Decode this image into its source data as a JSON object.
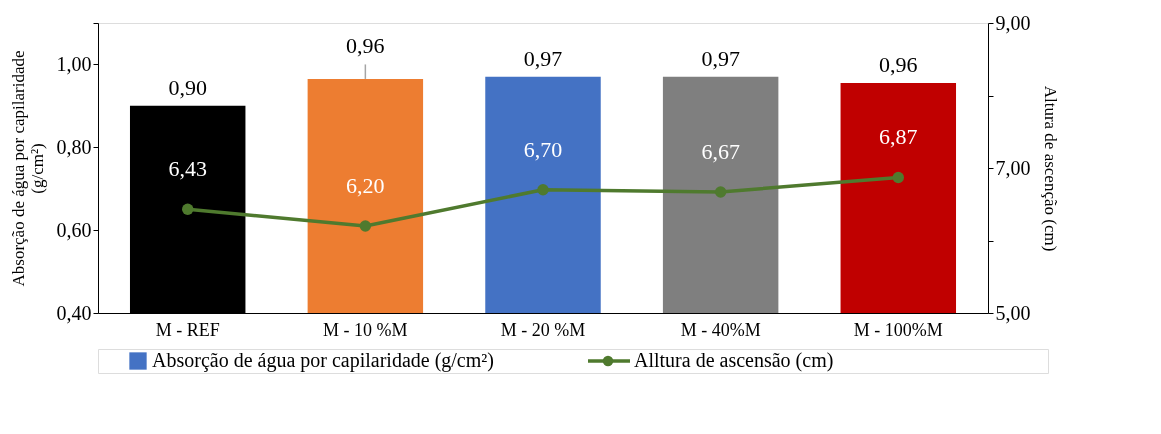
{
  "chart_data": {
    "type": "bar",
    "categories": [
      "M - REF",
      "M - 10 %M",
      "M - 20 %M",
      "M - 40%M",
      "M - 100%M"
    ],
    "ylabel": "Absorção de água por capilaridade (g/cm²)",
    "y2label": "Altura de ascenção (cm)",
    "ylim": [
      0.4,
      1.1
    ],
    "yticks": [
      {
        "value": 0.4,
        "label": "0,40"
      },
      {
        "value": 0.6,
        "label": "0,60"
      },
      {
        "value": 0.8,
        "label": "0,80"
      },
      {
        "value": 1.0,
        "label": "1,00"
      },
      {
        "value": 1.1,
        "label": null
      }
    ],
    "y2lim": [
      5,
      9
    ],
    "y2ticks": [
      {
        "value": 5,
        "label": "5,00"
      },
      {
        "value": 6,
        "label": null
      },
      {
        "value": 7,
        "label": "7,00"
      },
      {
        "value": 8,
        "label": null
      },
      {
        "value": 9,
        "label": "9,00"
      }
    ],
    "series": [
      {
        "name": "Absorção de água por capilaridade (g/cm²)",
        "type": "bar",
        "color": "#4472c4",
        "colors": [
          "#000000",
          "#ed7d31",
          "#4472c4",
          "#7f7f7f",
          "#c00000"
        ],
        "values": [
          0.9,
          0.965,
          0.97,
          0.97,
          0.955
        ],
        "value_labels": [
          "0,90",
          "0,96",
          "0,97",
          "0,97",
          "0,96"
        ],
        "errors": [
          null,
          [
            0.965,
            1.0
          ],
          null,
          null,
          null
        ]
      },
      {
        "name": "Alltura de ascensão (cm)",
        "type": "line",
        "axis": "y2",
        "color": "#4f7a2e",
        "marker": "circle",
        "values": [
          6.43,
          6.2,
          6.7,
          6.67,
          6.87
        ],
        "value_labels": [
          "6,43",
          "6,20",
          "6,70",
          "6,67",
          "6,87"
        ]
      }
    ],
    "grid": false,
    "legend": "bottom"
  }
}
